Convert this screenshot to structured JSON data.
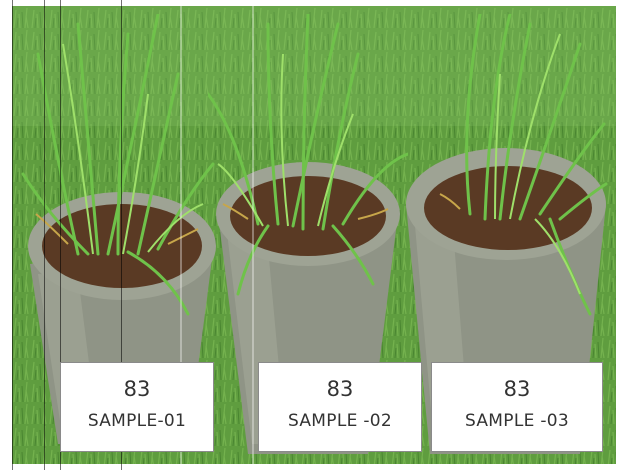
{
  "samples": [
    {
      "value": "83",
      "label": "SAMPLE-01"
    },
    {
      "value": "83",
      "label": "SAMPLE -02"
    },
    {
      "value": "83",
      "label": "SAMPLE -03"
    }
  ],
  "colors": {
    "grass": "#5f9d3f",
    "pot": "#8f9486",
    "soil": "#5a3a24",
    "label_bg": "#ffffff",
    "label_text": "#333333"
  }
}
